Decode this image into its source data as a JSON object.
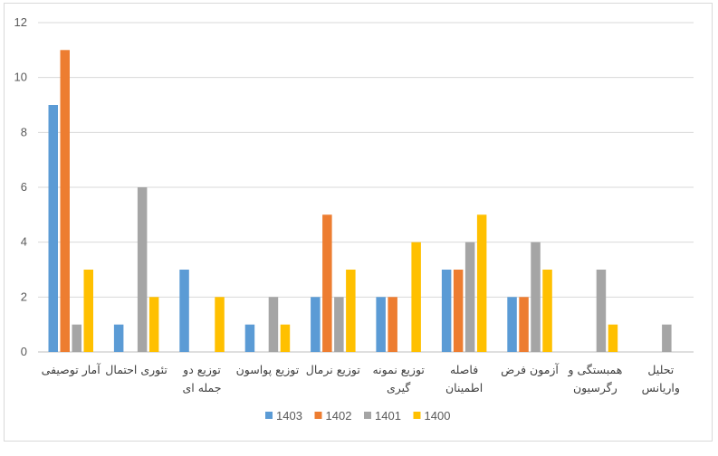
{
  "chart_data": {
    "type": "bar",
    "title": "",
    "xlabel": "",
    "ylabel": "",
    "ylim": [
      0,
      12
    ],
    "yticks": [
      0,
      2,
      4,
      6,
      8,
      10,
      12
    ],
    "grid": true,
    "legend_position": "bottom",
    "categories": [
      [
        "آمار توصیفی"
      ],
      [
        "تئوری احتمال"
      ],
      [
        "توزیع دو",
        "جمله ای"
      ],
      [
        "توزیع پواسون"
      ],
      [
        "توزیع نرمال"
      ],
      [
        "توزیع نمونه",
        "گیری"
      ],
      [
        "فاصله",
        "اطمینان"
      ],
      [
        "آزمون فرض"
      ],
      [
        "همبستگی و",
        "رگرسیون"
      ],
      [
        "تحلیل",
        "واریانس"
      ]
    ],
    "series": [
      {
        "name": "1403",
        "color": "#5b9bd5",
        "values": [
          9,
          1,
          3,
          1,
          2,
          2,
          3,
          2,
          0,
          0
        ]
      },
      {
        "name": "1402",
        "color": "#ed7d31",
        "values": [
          11,
          0,
          0,
          0,
          5,
          2,
          3,
          2,
          0,
          0
        ]
      },
      {
        "name": "1401",
        "color": "#a5a5a5",
        "values": [
          1,
          6,
          0,
          2,
          2,
          0,
          4,
          4,
          3,
          1
        ]
      },
      {
        "name": "1400",
        "color": "#ffc000",
        "values": [
          3,
          2,
          2,
          1,
          3,
          4,
          5,
          3,
          1,
          0
        ]
      }
    ]
  }
}
